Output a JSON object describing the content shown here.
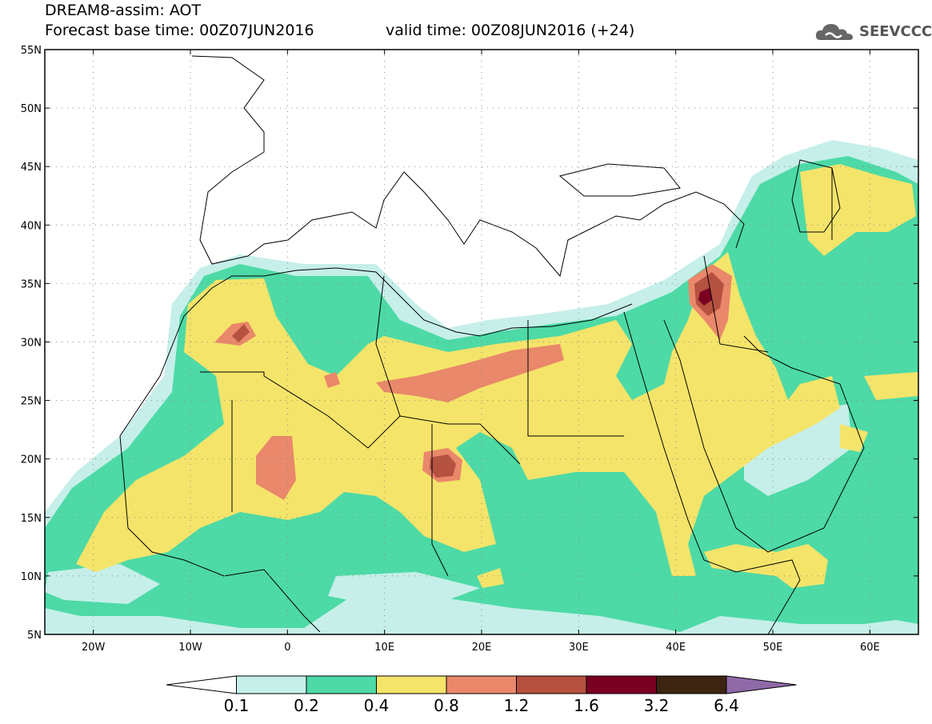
{
  "header": {
    "title": "DREAM8-assim: AOT",
    "base_time": "Forecast base time: 00Z07JUN2016",
    "valid_time": "valid time: 00Z08JUN2016 (+24)"
  },
  "logo": {
    "text": "SEEVCCC",
    "icon": "cloud-logo-icon"
  },
  "map": {
    "lat_labels": [
      "55N",
      "50N",
      "45N",
      "40N",
      "35N",
      "30N",
      "25N",
      "20N",
      "15N",
      "10N",
      "5N"
    ],
    "lon_labels": [
      "20W",
      "10W",
      "0",
      "10E",
      "20E",
      "30E",
      "40E",
      "50E",
      "60E"
    ],
    "extent": {
      "lon_min": -25,
      "lon_max": 65,
      "lat_min": 5,
      "lat_max": 55
    }
  },
  "legend": {
    "levels": [
      "0.1",
      "0.2",
      "0.4",
      "0.8",
      "1.2",
      "1.6",
      "3.2",
      "6.4"
    ],
    "colors": [
      "#ffffff",
      "#c6efe9",
      "#4ddaa6",
      "#f5e46a",
      "#e9886a",
      "#b5513f",
      "#7a0022",
      "#3d2410",
      "#8f6aa8"
    ]
  },
  "colors": {
    "c1": "#c6efe9",
    "c2": "#4ddaa6",
    "c3": "#f5e46a",
    "c4": "#e9886a",
    "c5": "#b5513f",
    "c6": "#7a0022"
  }
}
